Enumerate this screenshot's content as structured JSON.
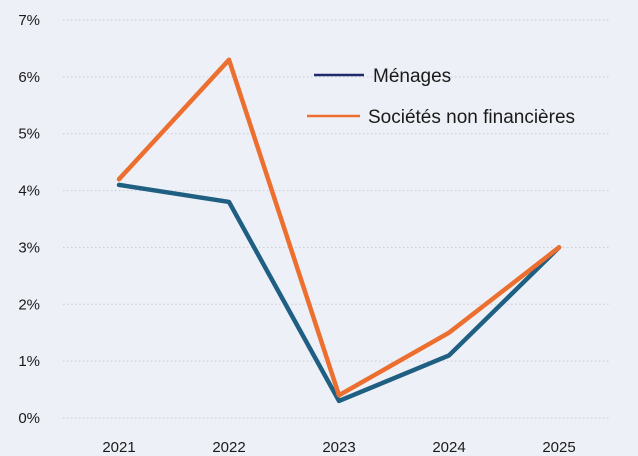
{
  "chart_data": {
    "type": "line",
    "title": "",
    "xlabel": "",
    "ylabel": "",
    "categories": [
      "2021",
      "2022",
      "2023",
      "2024",
      "2025"
    ],
    "ylim": [
      0,
      7
    ],
    "yticks": [
      0,
      1,
      2,
      3,
      4,
      5,
      6,
      7
    ],
    "ytick_labels": [
      "0%",
      "1%",
      "2%",
      "3%",
      "4%",
      "5%",
      "6%",
      "7%"
    ],
    "grid": "horizontal dotted",
    "legend_position": "top-right",
    "series": [
      {
        "name": "Ménages",
        "values": [
          4.1,
          3.8,
          0.3,
          1.1,
          3.0
        ],
        "color": "#1f5f82",
        "legend_color": "#1f2a6b"
      },
      {
        "name": "Sociétés non financières",
        "values": [
          4.2,
          6.3,
          0.4,
          1.5,
          3.0
        ],
        "color": "#ec6f2f",
        "legend_color": "#ec6f2f"
      }
    ]
  }
}
